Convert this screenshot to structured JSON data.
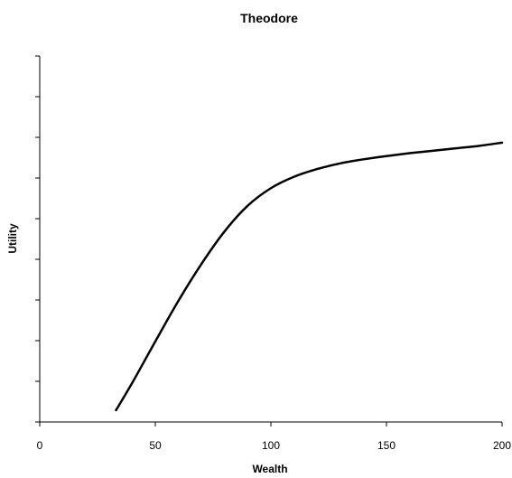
{
  "chart_data": {
    "type": "line",
    "title": "Theodore",
    "xlabel": "Wealth",
    "ylabel": "Utility",
    "xlim": [
      0,
      200
    ],
    "ylim": [
      0,
      9
    ],
    "x_ticks": [
      0,
      50,
      100,
      150,
      200
    ],
    "y_tick_labels_shown": false,
    "y_minor_tick_count": 9,
    "grid": false,
    "legend": "none",
    "series": [
      {
        "color": "#000000",
        "x": [
          33,
          40,
          50,
          60,
          70,
          80,
          90,
          100,
          110,
          120,
          130,
          140,
          150,
          160,
          170,
          180,
          190,
          200
        ],
        "y": [
          0.29,
          0.96,
          1.98,
          2.98,
          3.89,
          4.69,
          5.32,
          5.75,
          6.03,
          6.22,
          6.36,
          6.46,
          6.54,
          6.61,
          6.67,
          6.73,
          6.79,
          6.87
        ]
      }
    ]
  }
}
